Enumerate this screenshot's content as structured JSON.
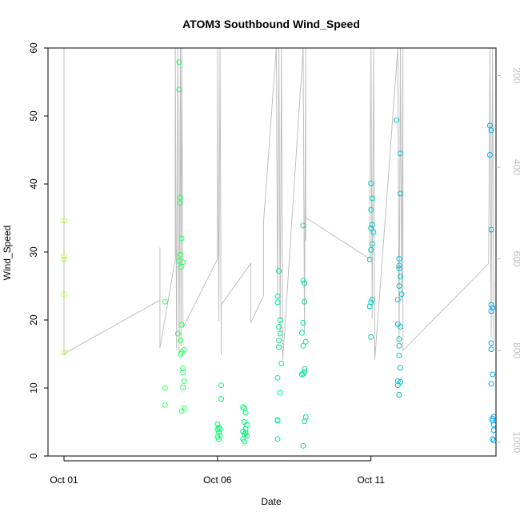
{
  "chart_data": {
    "type": "scatter",
    "title": "ATOM3 Southbound Wind_Speed",
    "xlabel": "Date",
    "ylabel": "Wind_Speed",
    "x_ticks": [
      {
        "date": "2023-10-01",
        "label": "Oct 01"
      },
      {
        "date": "2023-10-06",
        "label": "Oct 06"
      },
      {
        "date": "2023-10-11",
        "label": "Oct 11"
      }
    ],
    "xlim": [
      "2023-10-01 00:00",
      "2023-10-14 12:00"
    ],
    "ylim": [
      0,
      60
    ],
    "y_ticks": [
      0,
      10,
      20,
      30,
      40,
      50,
      60
    ],
    "secondary_axis": {
      "side": "right",
      "reversed": true,
      "ticks": [
        200,
        400,
        600,
        800,
        1000
      ],
      "range": [
        140,
        1030
      ],
      "color": "#bebebe"
    },
    "points": [
      {
        "x": "2023-10-01 00:05",
        "y": 34.6
      },
      {
        "x": "2023-10-01 00:05",
        "y": 29.4
      },
      {
        "x": "2023-10-01 00:05",
        "y": 28.9
      },
      {
        "x": "2023-10-01 00:05",
        "y": 23.8
      },
      {
        "x": "2023-10-01 00:05",
        "y": 15.2
      },
      {
        "x": "2023-10-04 07:00",
        "y": 22.7
      },
      {
        "x": "2023-10-04 07:00",
        "y": 10.0
      },
      {
        "x": "2023-10-04 07:00",
        "y": 7.5
      },
      {
        "x": "2023-10-04 18:00",
        "y": 57.9
      },
      {
        "x": "2023-10-04 18:00",
        "y": 53.9
      },
      {
        "x": "2023-10-04 19:00",
        "y": 38.0
      },
      {
        "x": "2023-10-04 18:30",
        "y": 37.2
      },
      {
        "x": "2023-10-04 20:00",
        "y": 32.0
      },
      {
        "x": "2023-10-04 19:00",
        "y": 29.6
      },
      {
        "x": "2023-10-04 18:00",
        "y": 28.7
      },
      {
        "x": "2023-10-04 21:00",
        "y": 28.5
      },
      {
        "x": "2023-10-04 19:30",
        "y": 27.8
      },
      {
        "x": "2023-10-04 20:00",
        "y": 19.3
      },
      {
        "x": "2023-10-04 17:00",
        "y": 18.0
      },
      {
        "x": "2023-10-04 19:00",
        "y": 17.0
      },
      {
        "x": "2023-10-04 22:00",
        "y": 15.6
      },
      {
        "x": "2023-10-04 20:00",
        "y": 15.3
      },
      {
        "x": "2023-10-04 19:00",
        "y": 15.0
      },
      {
        "x": "2023-10-04 21:00",
        "y": 12.9
      },
      {
        "x": "2023-10-04 21:00",
        "y": 12.3
      },
      {
        "x": "2023-10-04 22:00",
        "y": 11.0
      },
      {
        "x": "2023-10-04 21:00",
        "y": 10.1
      },
      {
        "x": "2023-10-04 22:00",
        "y": 7.0
      },
      {
        "x": "2023-10-04 20:00",
        "y": 6.6
      },
      {
        "x": "2023-10-06 00:00",
        "y": 4.7
      },
      {
        "x": "2023-10-06 01:00",
        "y": 4.2
      },
      {
        "x": "2023-10-06 00:00",
        "y": 3.9
      },
      {
        "x": "2023-10-06 01:00",
        "y": 3.5
      },
      {
        "x": "2023-10-06 02:00",
        "y": 3.0
      },
      {
        "x": "2023-10-06 00:00",
        "y": 2.8
      },
      {
        "x": "2023-10-06 01:00",
        "y": 2.5
      },
      {
        "x": "2023-10-06 02:00",
        "y": 4.0
      },
      {
        "x": "2023-10-06 03:00",
        "y": 10.4
      },
      {
        "x": "2023-10-06 03:00",
        "y": 8.4
      },
      {
        "x": "2023-10-06 20:00",
        "y": 7.2
      },
      {
        "x": "2023-10-06 21:00",
        "y": 7.0
      },
      {
        "x": "2023-10-06 22:00",
        "y": 6.4
      },
      {
        "x": "2023-10-06 21:00",
        "y": 5.0
      },
      {
        "x": "2023-10-06 23:00",
        "y": 4.6
      },
      {
        "x": "2023-10-06 22:00",
        "y": 4.0
      },
      {
        "x": "2023-10-06 20:00",
        "y": 3.6
      },
      {
        "x": "2023-10-06 21:00",
        "y": 3.2
      },
      {
        "x": "2023-10-06 23:00",
        "y": 3.0
      },
      {
        "x": "2023-10-06 20:00",
        "y": 2.5
      },
      {
        "x": "2023-10-06 21:00",
        "y": 2.1
      },
      {
        "x": "2023-10-06 22:00",
        "y": 3.4
      },
      {
        "x": "2023-10-08 00:00",
        "y": 27.2
      },
      {
        "x": "2023-10-07 23:00",
        "y": 23.5
      },
      {
        "x": "2023-10-07 23:00",
        "y": 22.6
      },
      {
        "x": "2023-10-08 01:00",
        "y": 20.0
      },
      {
        "x": "2023-10-08 00:00",
        "y": 19.0
      },
      {
        "x": "2023-10-08 01:00",
        "y": 18.0
      },
      {
        "x": "2023-10-08 00:00",
        "y": 17.0
      },
      {
        "x": "2023-10-08 00:00",
        "y": 16.0
      },
      {
        "x": "2023-10-08 02:00",
        "y": 13.6
      },
      {
        "x": "2023-10-07 23:00",
        "y": 11.5
      },
      {
        "x": "2023-10-08 01:00",
        "y": 9.3
      },
      {
        "x": "2023-10-07 23:00",
        "y": 5.3
      },
      {
        "x": "2023-10-07 23:00",
        "y": 5.2
      },
      {
        "x": "2023-10-07 23:00",
        "y": 2.5
      },
      {
        "x": "2023-10-08 19:00",
        "y": 33.9
      },
      {
        "x": "2023-10-08 19:00",
        "y": 25.8
      },
      {
        "x": "2023-10-08 20:00",
        "y": 25.4
      },
      {
        "x": "2023-10-08 20:00",
        "y": 22.7
      },
      {
        "x": "2023-10-08 19:00",
        "y": 19.6
      },
      {
        "x": "2023-10-08 18:00",
        "y": 18.1
      },
      {
        "x": "2023-10-08 21:00",
        "y": 16.8
      },
      {
        "x": "2023-10-08 19:00",
        "y": 16.2
      },
      {
        "x": "2023-10-08 20:00",
        "y": 12.8
      },
      {
        "x": "2023-10-08 20:00",
        "y": 12.4
      },
      {
        "x": "2023-10-08 19:00",
        "y": 12.1
      },
      {
        "x": "2023-10-08 18:00",
        "y": 12.0
      },
      {
        "x": "2023-10-08 21:00",
        "y": 5.7
      },
      {
        "x": "2023-10-08 20:00",
        "y": 5.1
      },
      {
        "x": "2023-10-08 19:00",
        "y": 1.5
      },
      {
        "x": "2023-10-11 00:00",
        "y": 40.1
      },
      {
        "x": "2023-10-11 01:00",
        "y": 37.9
      },
      {
        "x": "2023-10-11 00:00",
        "y": 36.2
      },
      {
        "x": "2023-10-11 01:00",
        "y": 34.0
      },
      {
        "x": "2023-10-11 00:00",
        "y": 33.5
      },
      {
        "x": "2023-10-11 02:00",
        "y": 32.9
      },
      {
        "x": "2023-10-11 01:00",
        "y": 31.2
      },
      {
        "x": "2023-10-11 00:00",
        "y": 30.3
      },
      {
        "x": "2023-10-10 23:00",
        "y": 28.9
      },
      {
        "x": "2023-10-11 01:00",
        "y": 23.0
      },
      {
        "x": "2023-10-11 00:00",
        "y": 22.6
      },
      {
        "x": "2023-10-10 23:00",
        "y": 22.0
      },
      {
        "x": "2023-10-11 00:00",
        "y": 17.5
      },
      {
        "x": "2023-10-11 20:00",
        "y": 49.4
      },
      {
        "x": "2023-10-11 23:00",
        "y": 44.5
      },
      {
        "x": "2023-10-11 23:00",
        "y": 38.6
      },
      {
        "x": "2023-10-11 22:00",
        "y": 29.0
      },
      {
        "x": "2023-10-11 22:00",
        "y": 28.0
      },
      {
        "x": "2023-10-11 22:00",
        "y": 27.6
      },
      {
        "x": "2023-10-11 23:00",
        "y": 26.4
      },
      {
        "x": "2023-10-11 22:00",
        "y": 25.0
      },
      {
        "x": "2023-10-12 00:00",
        "y": 23.8
      },
      {
        "x": "2023-10-11 21:00",
        "y": 23.0
      },
      {
        "x": "2023-10-11 21:00",
        "y": 19.4
      },
      {
        "x": "2023-10-11 23:00",
        "y": 19.0
      },
      {
        "x": "2023-10-11 22:00",
        "y": 17.2
      },
      {
        "x": "2023-10-11 22:00",
        "y": 16.2
      },
      {
        "x": "2023-10-11 22:00",
        "y": 14.8
      },
      {
        "x": "2023-10-11 23:00",
        "y": 13.0
      },
      {
        "x": "2023-10-11 21:00",
        "y": 11.0
      },
      {
        "x": "2023-10-11 23:00",
        "y": 10.9
      },
      {
        "x": "2023-10-11 21:00",
        "y": 10.4
      },
      {
        "x": "2023-10-11 22:00",
        "y": 9.0
      },
      {
        "x": "2023-10-14 21:00",
        "y": 48.6
      },
      {
        "x": "2023-10-14 22:00",
        "y": 47.9
      },
      {
        "x": "2023-10-14 21:00",
        "y": 44.3
      },
      {
        "x": "2023-10-14 22:00",
        "y": 33.3
      },
      {
        "x": "2023-10-14 22:00",
        "y": 22.2
      },
      {
        "x": "2023-10-14 23:00",
        "y": 21.8
      },
      {
        "x": "2023-10-14 22:00",
        "y": 21.3
      },
      {
        "x": "2023-10-14 22:00",
        "y": 16.6
      },
      {
        "x": "2023-10-14 22:00",
        "y": 15.7
      },
      {
        "x": "2023-10-14 23:00",
        "y": 12.0
      },
      {
        "x": "2023-10-14 22:00",
        "y": 10.6
      },
      {
        "x": "2023-10-15 00:00",
        "y": 5.8
      },
      {
        "x": "2023-10-14 23:00",
        "y": 5.5
      },
      {
        "x": "2023-10-14 23:00",
        "y": 5.2
      },
      {
        "x": "2023-10-15 00:00",
        "y": 4.6
      },
      {
        "x": "2023-10-15 00:00",
        "y": 3.8
      },
      {
        "x": "2023-10-14 23:00",
        "y": 2.5
      },
      {
        "x": "2023-10-15 00:00",
        "y": 2.3
      }
    ],
    "line_series": {
      "axis": "right",
      "color": "#bebebe",
      "points": [
        {
          "x": "2023-10-01 00:00",
          "y": 140
        },
        {
          "x": "2023-10-01 00:00",
          "y": 807
        },
        {
          "x": "2023-10-04 03:00",
          "y": 690
        },
        {
          "x": "2023-10-04 03:00",
          "y": 575
        },
        {
          "x": "2023-10-04 03:00",
          "y": 795
        },
        {
          "x": "2023-10-04 15:00",
          "y": 600
        },
        {
          "x": "2023-10-04 15:00",
          "y": 140
        },
        {
          "x": "2023-10-04 16:00",
          "y": 800
        },
        {
          "x": "2023-10-04 17:00",
          "y": 140
        },
        {
          "x": "2023-10-04 18:00",
          "y": 800
        },
        {
          "x": "2023-10-04 19:00",
          "y": 140
        },
        {
          "x": "2023-10-04 19:30",
          "y": 790
        },
        {
          "x": "2023-10-04 20:00",
          "y": 140
        },
        {
          "x": "2023-10-04 21:00",
          "y": 750
        },
        {
          "x": "2023-10-06 00:00",
          "y": 600
        },
        {
          "x": "2023-10-06 00:00",
          "y": 140
        },
        {
          "x": "2023-10-06 01:00",
          "y": 735
        },
        {
          "x": "2023-10-06 02:00",
          "y": 140
        },
        {
          "x": "2023-10-06 03:00",
          "y": 810
        },
        {
          "x": "2023-10-06 03:00",
          "y": 700
        },
        {
          "x": "2023-10-07 02:00",
          "y": 610
        },
        {
          "x": "2023-10-07 02:00",
          "y": 740
        },
        {
          "x": "2023-10-07 12:00",
          "y": 680
        },
        {
          "x": "2023-10-07 12:00",
          "y": 520
        },
        {
          "x": "2023-10-07 22:00",
          "y": 140
        },
        {
          "x": "2023-10-07 23:00",
          "y": 690
        },
        {
          "x": "2023-10-08 00:00",
          "y": 140
        },
        {
          "x": "2023-10-08 01:00",
          "y": 760
        },
        {
          "x": "2023-10-08 02:00",
          "y": 140
        },
        {
          "x": "2023-10-08 03:00",
          "y": 820
        },
        {
          "x": "2023-10-08 19:00",
          "y": 140
        },
        {
          "x": "2023-10-08 20:00",
          "y": 760
        },
        {
          "x": "2023-10-08 21:00",
          "y": 140
        },
        {
          "x": "2023-10-08 21:00",
          "y": 560
        },
        {
          "x": "2023-10-08 21:00",
          "y": 510
        },
        {
          "x": "2023-10-10 23:00",
          "y": 600
        },
        {
          "x": "2023-10-11 00:00",
          "y": 140
        },
        {
          "x": "2023-10-11 01:00",
          "y": 730
        },
        {
          "x": "2023-10-11 02:00",
          "y": 140
        },
        {
          "x": "2023-10-11 03:00",
          "y": 800
        },
        {
          "x": "2023-10-11 03:00",
          "y": 820
        },
        {
          "x": "2023-10-11 21:00",
          "y": 140
        },
        {
          "x": "2023-10-11 22:00",
          "y": 780
        },
        {
          "x": "2023-10-11 23:00",
          "y": 140
        },
        {
          "x": "2023-10-12 00:00",
          "y": 690
        },
        {
          "x": "2023-10-12 01:00",
          "y": 140
        },
        {
          "x": "2023-10-12 01:00",
          "y": 800
        },
        {
          "x": "2023-10-14 20:00",
          "y": 610
        },
        {
          "x": "2023-10-14 21:00",
          "y": 140
        },
        {
          "x": "2023-10-14 22:00",
          "y": 770
        },
        {
          "x": "2023-10-14 23:00",
          "y": 140
        },
        {
          "x": "2023-10-15 00:00",
          "y": 780
        },
        {
          "x": "2023-10-15 00:00",
          "y": 650
        }
      ]
    },
    "grid": false,
    "legend": "none",
    "colors": {
      "point_start": "#b0ff33",
      "point_mid": "#00ff66",
      "point_end": "#00aaff",
      "line": "#bebebe",
      "axis": "#000000",
      "right_axis": "#bebebe"
    }
  }
}
